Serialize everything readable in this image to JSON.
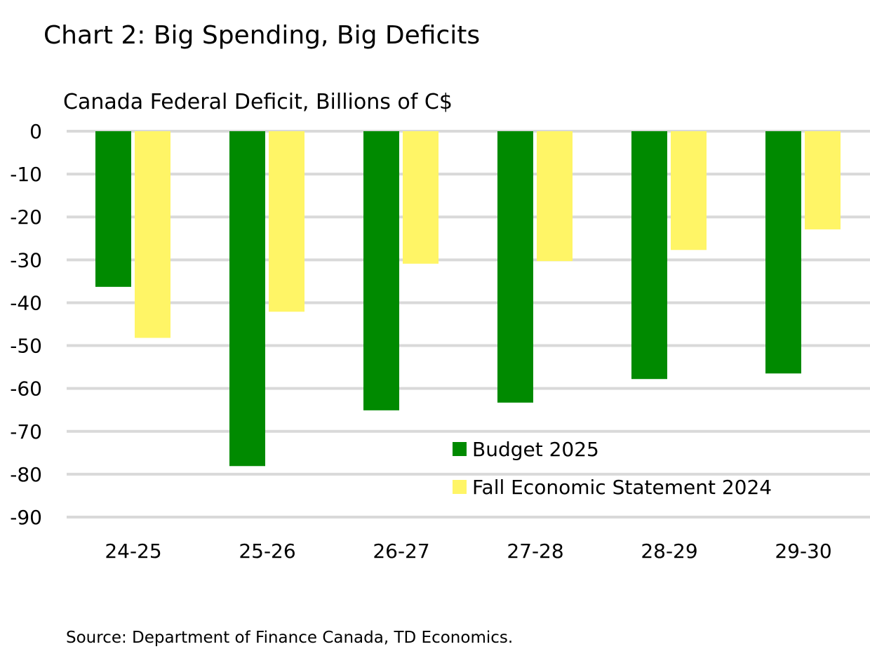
{
  "chart_data": {
    "type": "bar",
    "title": "Chart 2: Big Spending, Big Deficits",
    "subtitle": "Canada Federal Deficit, Billions of C$",
    "categories": [
      "24-25",
      "25-26",
      "26-27",
      "27-28",
      "28-29",
      "29-30"
    ],
    "series": [
      {
        "name": "Budget 2025",
        "color": "#008a00",
        "values": [
          -36.3,
          -78.1,
          -65.1,
          -63.3,
          -57.8,
          -56.5
        ]
      },
      {
        "name": "Fall Economic Statement 2024",
        "color": "#fff566",
        "values": [
          -48.2,
          -42.1,
          -30.9,
          -30.3,
          -27.7,
          -22.9
        ]
      }
    ],
    "ylim": [
      -90,
      0
    ],
    "yticks": [
      0,
      -10,
      -20,
      -30,
      -40,
      -50,
      -60,
      -70,
      -80,
      -90
    ],
    "grid": true,
    "legend": "bottom-right",
    "xlabel": "",
    "ylabel": "",
    "source": "Source: Department of Finance Canada, TD Economics."
  }
}
